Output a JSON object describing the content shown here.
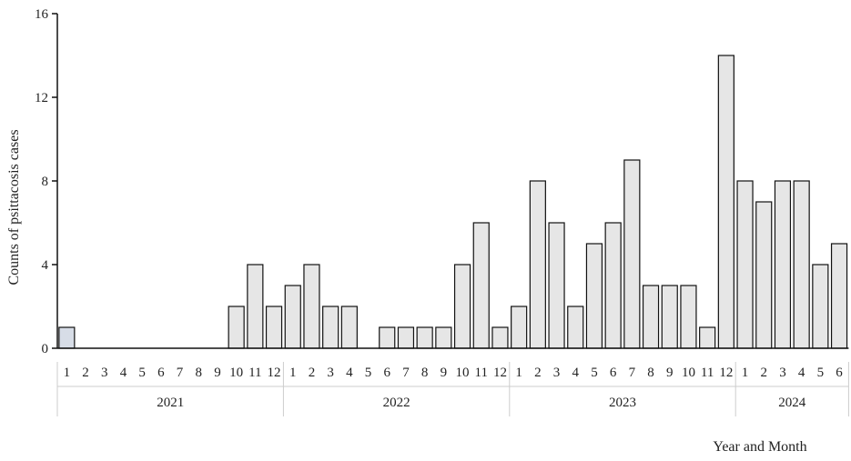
{
  "chart_data": {
    "type": "bar",
    "xlabel": "Year and Month",
    "ylabel": "Counts of psittacosis cases",
    "ylim": [
      0,
      16
    ],
    "yticks": [
      0,
      4,
      8,
      12,
      16
    ],
    "grid": false,
    "colors": {
      "bar_fill": "#e6e6e6",
      "first_bar_fill": "#d7dde7",
      "bar_stroke": "#111111",
      "separator": "#cccccc"
    },
    "years": [
      {
        "label": "2021",
        "months": [
          "1",
          "2",
          "3",
          "4",
          "5",
          "6",
          "7",
          "8",
          "9",
          "10",
          "11",
          "12"
        ],
        "values": [
          1,
          0,
          0,
          0,
          0,
          0,
          0,
          0,
          0,
          2,
          4,
          2
        ]
      },
      {
        "label": "2022",
        "months": [
          "1",
          "2",
          "3",
          "4",
          "5",
          "6",
          "7",
          "8",
          "9",
          "10",
          "11",
          "12"
        ],
        "values": [
          3,
          4,
          2,
          2,
          0,
          1,
          1,
          1,
          1,
          4,
          6,
          1
        ]
      },
      {
        "label": "2023",
        "months": [
          "1",
          "2",
          "3",
          "4",
          "5",
          "6",
          "7",
          "8",
          "9",
          "10",
          "11",
          "12"
        ],
        "values": [
          2,
          8,
          6,
          2,
          5,
          6,
          9,
          3,
          3,
          3,
          1,
          14
        ]
      },
      {
        "label": "2024",
        "months": [
          "1",
          "2",
          "3",
          "4",
          "5",
          "6"
        ],
        "values": [
          8,
          7,
          8,
          8,
          4,
          5
        ]
      }
    ]
  }
}
